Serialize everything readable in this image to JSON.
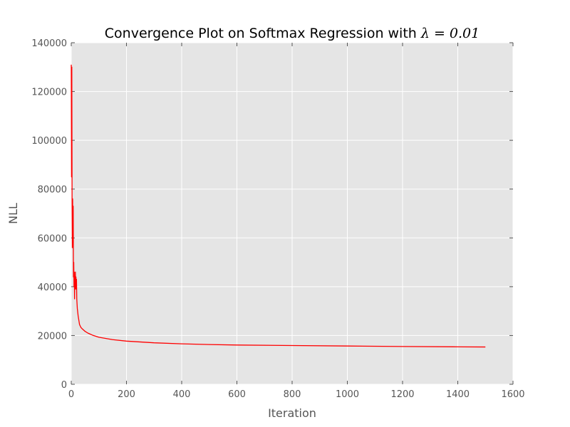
{
  "chart_data": {
    "type": "line",
    "title": "Convergence Plot on Softmax Regression with ",
    "title_math": "λ = 0.01",
    "xlabel": "Iteration",
    "ylabel": "NLL",
    "xlim": [
      0,
      1600
    ],
    "ylim": [
      0,
      140000
    ],
    "xticks": [
      "0",
      "200",
      "400",
      "600",
      "800",
      "1000",
      "1200",
      "1400",
      "1600"
    ],
    "yticks": [
      "0",
      "20000",
      "40000",
      "60000",
      "80000",
      "100000",
      "120000",
      "140000"
    ],
    "grid": true,
    "plot_background": "#e5e5e5",
    "grid_color": "#ffffff",
    "series": [
      {
        "color": "#ff0000",
        "x": [
          0,
          1,
          2,
          3,
          4,
          5,
          6,
          7,
          8,
          9,
          10,
          11,
          12,
          13,
          14,
          15,
          16,
          17,
          18,
          19,
          20,
          22,
          25,
          30,
          35,
          40,
          50,
          60,
          80,
          100,
          150,
          200,
          300,
          400,
          500,
          600,
          800,
          1000,
          1200,
          1400,
          1500
        ],
        "y": [
          131000,
          85000,
          130000,
          75000,
          56000,
          76000,
          58000,
          73000,
          44000,
          50000,
          40000,
          46000,
          35000,
          44000,
          40000,
          46000,
          39000,
          44000,
          40000,
          43000,
          35000,
          31000,
          28000,
          24500,
          23300,
          22700,
          21700,
          21000,
          20000,
          19300,
          18300,
          17700,
          17000,
          16600,
          16300,
          16100,
          15900,
          15700,
          15500,
          15350,
          15300
        ]
      }
    ]
  }
}
